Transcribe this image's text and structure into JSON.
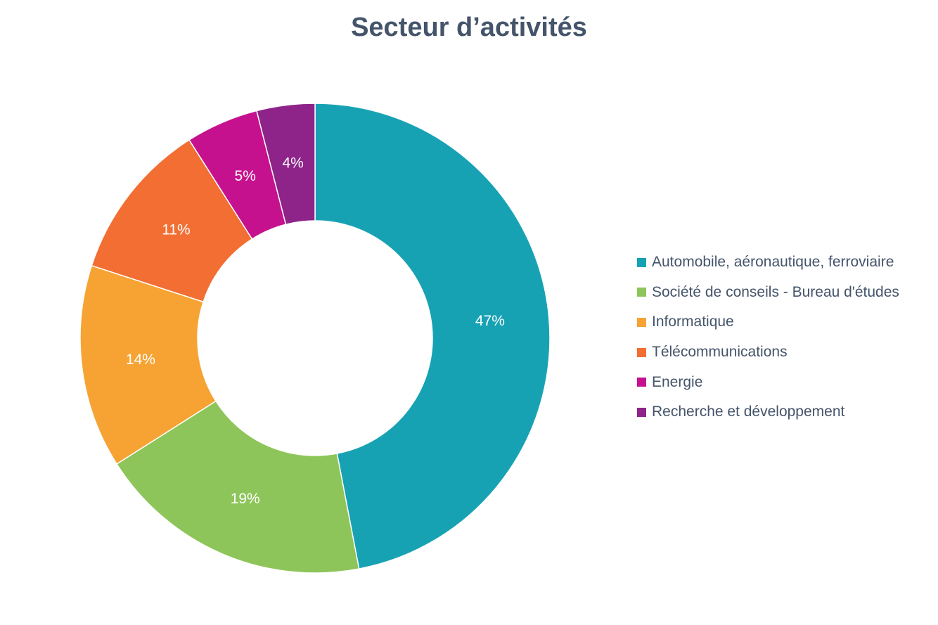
{
  "chart_data": {
    "type": "pie",
    "variant": "donut",
    "title": "Secteur d’activités",
    "legend_position": "right",
    "categories": [
      "Automobile, aéronautique, ferroviaire",
      "Société de conseils - Bureau d'études",
      "Informatique",
      "Télécommunications",
      "Energie",
      "Recherche et développement"
    ],
    "values": [
      47,
      19,
      14,
      11,
      5,
      4
    ],
    "labels": [
      "47%",
      "19%",
      "14%",
      "11%",
      "5%",
      "4%"
    ],
    "colors": [
      "#17a2b4",
      "#8dc55a",
      "#f6a333",
      "#f26e33",
      "#c6118f",
      "#8e2389"
    ]
  }
}
